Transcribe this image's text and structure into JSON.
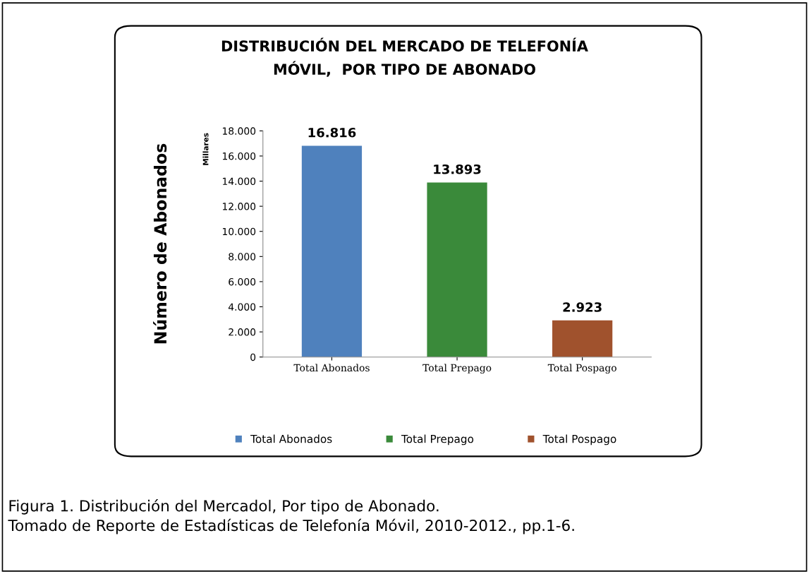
{
  "chart_data": {
    "type": "bar",
    "title": "DISTRIBUCIÓN DEL MERCADO DE TELEFONÍA\nMÓVIL,  POR TIPO DE ABONADO",
    "ylabel": "Número de Abonados",
    "categories": [
      "Total Abonados",
      "Total Prepago",
      "Total Pospago"
    ],
    "series": [
      {
        "name": "Total Abonados",
        "color": "#4f81bd",
        "values": [
          16816,
          null,
          null
        ],
        "value_labels": [
          "16.816",
          null,
          null
        ]
      },
      {
        "name": "Total Prepago",
        "color": "#3a8a3a",
        "values": [
          null,
          13893,
          null
        ],
        "value_labels": [
          null,
          "13.893",
          null
        ]
      },
      {
        "name": "Total Pospago",
        "color": "#a0522d",
        "values": [
          null,
          null,
          2923
        ],
        "value_labels": [
          null,
          null,
          "2.923"
        ]
      }
    ],
    "grid": false,
    "ylim": [
      0,
      18000
    ],
    "yticks": [
      0,
      {
        "value": 2000,
        "label": "2.000"
      },
      {
        "value": 4000,
        "label": "4.000"
      },
      {
        "value": 6000,
        "label": "6.000"
      },
      {
        "value": 8000,
        "label": "8.000"
      },
      {
        "value": 10000,
        "label": "10.000"
      },
      {
        "value": 12000,
        "label": "12.000"
      },
      {
        "value": 14000,
        "label": "14.000"
      },
      {
        "value": 16000,
        "label": "16.000"
      },
      {
        "value": 18000,
        "label": "18.000"
      }
    ],
    "legend": "bottom",
    "annotations": [
      "Millares",
      "Figura 1. Distribución del Mercadol, Por tipo de Abonado.\nTomado de Reporte de Estadísticas de Telefonía Móvil, 2010-2012., pp.1-6."
    ]
  }
}
